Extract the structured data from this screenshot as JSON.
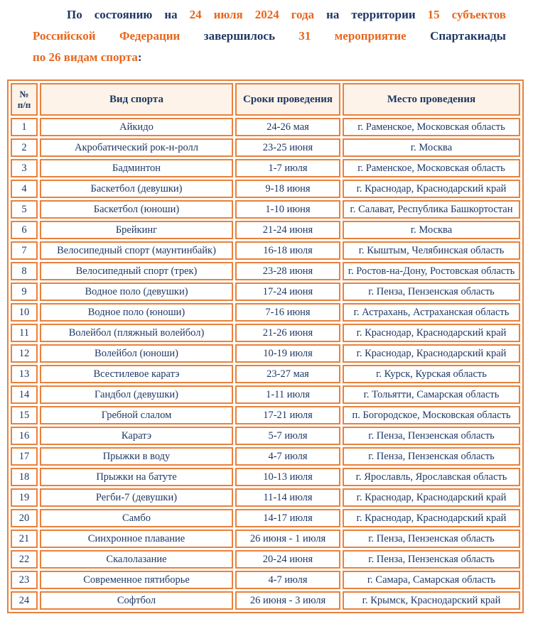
{
  "intro": {
    "lines": [
      {
        "justify": true,
        "indent": true,
        "tokens": [
          {
            "t": "По",
            "c": "dark"
          },
          {
            "t": "состоянию",
            "c": "dark"
          },
          {
            "t": "на",
            "c": "dark"
          },
          {
            "t": "24",
            "c": "orange"
          },
          {
            "t": "июля",
            "c": "orange"
          },
          {
            "t": "2024",
            "c": "orange"
          },
          {
            "t": "года",
            "c": "orange"
          },
          {
            "t": "на",
            "c": "dark"
          },
          {
            "t": "территории",
            "c": "dark"
          },
          {
            "t": "15",
            "c": "orange"
          },
          {
            "t": "субъектов",
            "c": "orange"
          }
        ]
      },
      {
        "justify": true,
        "indent": false,
        "tokens": [
          {
            "t": "Российской",
            "c": "orange"
          },
          {
            "t": "Федерации",
            "c": "orange"
          },
          {
            "t": "завершилось",
            "c": "dark"
          },
          {
            "t": "31",
            "c": "orange"
          },
          {
            "t": "мероприятие",
            "c": "orange"
          },
          {
            "t": "Спартакиады",
            "c": "dark"
          }
        ]
      },
      {
        "justify": false,
        "indent": false,
        "tokens": [
          {
            "t": "по 26 видам спорта",
            "c": "orange"
          },
          {
            "t": ":",
            "c": "dark"
          }
        ]
      }
    ]
  },
  "table": {
    "columns": [
      "№ п/п",
      "Вид спорта",
      "Сроки проведения",
      "Место проведения"
    ],
    "rows": [
      {
        "num": "1",
        "sport": "Айкидо",
        "dates": "24-26 мая",
        "place": "г. Раменское, Московская область"
      },
      {
        "num": "2",
        "sport": "Акробатический рок-н-ролл",
        "dates": "23-25 июня",
        "place": "г. Москва"
      },
      {
        "num": "3",
        "sport": "Бадминтон",
        "dates": "1-7 июля",
        "place": "г. Раменское, Московская область"
      },
      {
        "num": "4",
        "sport": "Баскетбол (девушки)",
        "dates": "9-18 июня",
        "place": "г. Краснодар, Краснодарский край"
      },
      {
        "num": "5",
        "sport": "Баскетбол (юноши)",
        "dates": "1-10 июня",
        "place": "г. Салават, Республика Башкортостан"
      },
      {
        "num": "6",
        "sport": "Брейкинг",
        "dates": "21-24 июня",
        "place": "г. Москва"
      },
      {
        "num": "7",
        "sport": "Велосипедный спорт (маунтинбайк)",
        "dates": "16-18 июля",
        "place": "г. Кыштым, Челябинская область"
      },
      {
        "num": "8",
        "sport": "Велосипедный спорт (трек)",
        "dates": "23-28 июня",
        "place": "г. Ростов-на-Дону, Ростовская область"
      },
      {
        "num": "9",
        "sport": "Водное поло (девушки)",
        "dates": "17-24 июня",
        "place": "г. Пенза, Пензенская область"
      },
      {
        "num": "10",
        "sport": "Водное поло (юноши)",
        "dates": "7-16 июня",
        "place": "г. Астрахань, Астраханская область"
      },
      {
        "num": "11",
        "sport": "Волейбол (пляжный волейбол)",
        "dates": "21-26 июня",
        "place": "г. Краснодар, Краснодарский край"
      },
      {
        "num": "12",
        "sport": "Волейбол (юноши)",
        "dates": "10-19 июля",
        "place": "г. Краснодар, Краснодарский край"
      },
      {
        "num": "13",
        "sport": "Всестилевое каратэ",
        "dates": "23-27 мая",
        "place": "г. Курск, Курская область"
      },
      {
        "num": "14",
        "sport": "Гандбол (девушки)",
        "dates": "1-11 июля",
        "place": "г. Тольятти, Самарская область"
      },
      {
        "num": "15",
        "sport": "Гребной слалом",
        "dates": "17-21 июля",
        "place": "п. Богородское, Московская область"
      },
      {
        "num": "16",
        "sport": "Каратэ",
        "dates": "5-7 июля",
        "place": "г. Пенза, Пензенская область"
      },
      {
        "num": "17",
        "sport": "Прыжки в воду",
        "dates": "4-7 июля",
        "place": "г. Пенза, Пензенская область"
      },
      {
        "num": "18",
        "sport": "Прыжки на батуте",
        "dates": "10-13 июля",
        "place": "г. Ярославль, Ярославская область"
      },
      {
        "num": "19",
        "sport": "Регби-7 (девушки)",
        "dates": "11-14 июля",
        "place": "г. Краснодар, Краснодарский край"
      },
      {
        "num": "20",
        "sport": "Самбо",
        "dates": "14-17 июля",
        "place": "г. Краснодар, Краснодарский край"
      },
      {
        "num": "21",
        "sport": "Синхронное плавание",
        "dates": "26 июня - 1 июля",
        "place": "г. Пенза, Пензенская область"
      },
      {
        "num": "22",
        "sport": "Скалолазание",
        "dates": "20-24 июня",
        "place": "г. Пенза, Пензенская область"
      },
      {
        "num": "23",
        "sport": "Современное пятиборье",
        "dates": "4-7 июля",
        "place": "г. Самара, Самарская область"
      },
      {
        "num": "24",
        "sport": "Софтбол",
        "dates": "26 июня - 3 июля",
        "place": "г. Крымск, Краснодарский край"
      }
    ]
  },
  "colors": {
    "accent_orange_text": "#e9661c",
    "table_border_orange": "#e8813c",
    "text_navy": "#1f3864",
    "header_background": "#fdf3e8"
  }
}
